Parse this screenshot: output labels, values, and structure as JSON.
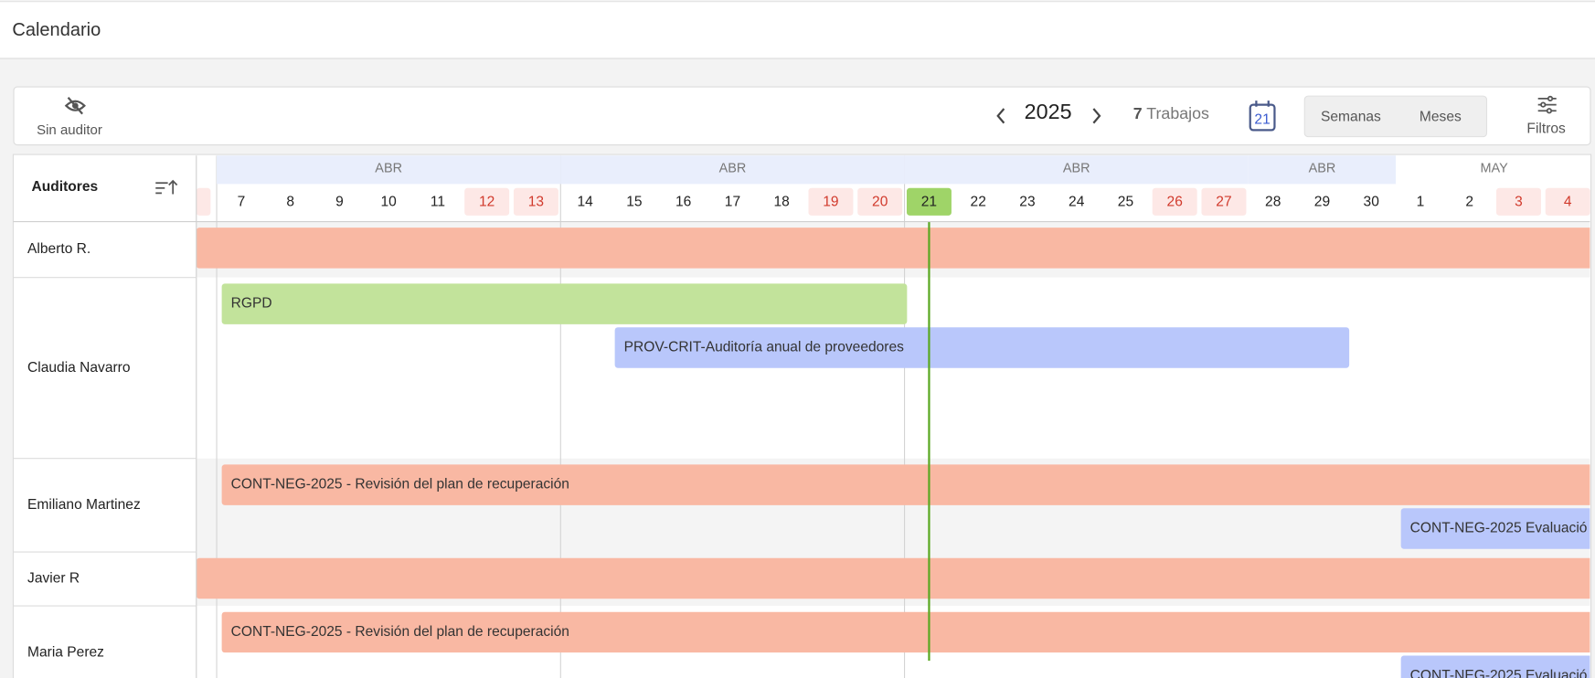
{
  "header": {
    "title": "Calendario"
  },
  "toolbar": {
    "no_auditor": "Sin auditor",
    "year": "2025",
    "job_count": "7",
    "jobs_label": "Trabajos",
    "today_button": "21",
    "views": [
      "Semanas",
      "Meses"
    ],
    "active_view": 0,
    "filters": "Filtros"
  },
  "calendar": {
    "column_header": "Auditores",
    "start": "2025-04-07",
    "groups": [
      {
        "month": "ABR",
        "days": [
          {
            "day": 7
          },
          {
            "day": 8
          },
          {
            "day": 9
          },
          {
            "day": 10
          },
          {
            "day": 11
          },
          {
            "day": 12,
            "weekend": true
          },
          {
            "day": 13,
            "weekend": true
          }
        ]
      },
      {
        "month": "ABR",
        "days": [
          {
            "day": 14
          },
          {
            "day": 15
          },
          {
            "day": 16
          },
          {
            "day": 17
          },
          {
            "day": 18
          },
          {
            "day": 19,
            "weekend": true
          },
          {
            "day": 20,
            "weekend": true
          }
        ]
      },
      {
        "month": "ABR",
        "days": [
          {
            "day": 21,
            "today": true
          },
          {
            "day": 22
          },
          {
            "day": 23
          },
          {
            "day": 24
          },
          {
            "day": 25
          },
          {
            "day": 26,
            "weekend": true
          },
          {
            "day": 27,
            "weekend": true
          }
        ]
      },
      {
        "month": "ABR",
        "days": [
          {
            "day": 28
          },
          {
            "day": 29
          },
          {
            "day": 30
          }
        ]
      },
      {
        "month": "MAY",
        "days": [
          {
            "day": 1
          },
          {
            "day": 2
          },
          {
            "day": 3,
            "weekend": true
          },
          {
            "day": 4,
            "weekend": true
          }
        ]
      }
    ],
    "rows": [
      {
        "name": "Alberto R.",
        "tasks": [
          {
            "start": "2025-04-01",
            "end": "2025-05-10",
            "color": "#f9b8a3"
          }
        ]
      },
      {
        "name": "Claudia Navarro",
        "tasks": [
          {
            "label": "RGPD",
            "start": "2025-04-07",
            "end": "2025-04-21",
            "color": "#c2e39b"
          },
          {
            "label": "PROV-CRIT-Auditoría anual de proveedores",
            "start": "2025-04-15",
            "end": "2025-04-30",
            "color": "#b9c7fb"
          }
        ]
      },
      {
        "name": "Emiliano Martinez",
        "tasks": [
          {
            "label": "CONT-NEG-2025 - Revisión del plan de recuperación",
            "start": "2025-04-07",
            "end": "2025-05-10",
            "color": "#f9b8a3"
          },
          {
            "label": "CONT-NEG-2025 Evaluació",
            "start": "2025-05-01",
            "end": "2025-05-10",
            "color": "#b9c7fb"
          }
        ]
      },
      {
        "name": "Javier R",
        "tasks": [
          {
            "start": "2025-04-01",
            "end": "2025-05-10",
            "color": "#f9b8a3"
          }
        ]
      },
      {
        "name": "Maria Perez",
        "tasks": [
          {
            "label": "CONT-NEG-2025 - Revisión del plan de recuperación",
            "start": "2025-04-07",
            "end": "2025-05-10",
            "color": "#f9b8a3"
          },
          {
            "label": "CONT-NEG-2025 Evaluació",
            "start": "2025-05-01",
            "end": "2025-05-10",
            "color": "#b9c7fb"
          }
        ]
      }
    ]
  }
}
